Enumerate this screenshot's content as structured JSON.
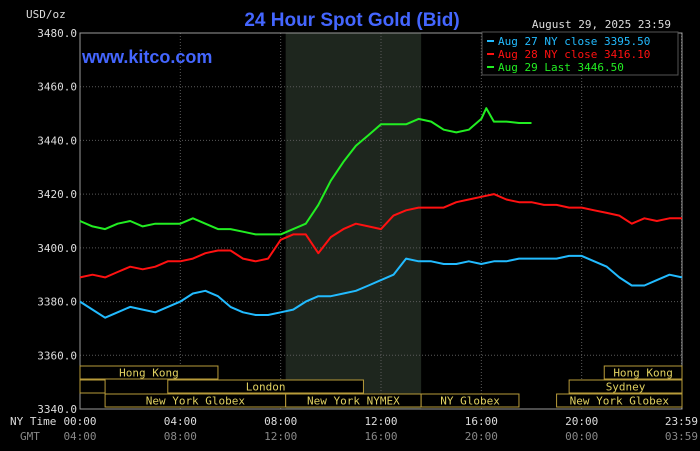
{
  "chart_data": {
    "type": "line",
    "title": "24 Hour Spot Gold (Bid)",
    "watermark": "www.kitco.com",
    "ylabel": "USD/oz",
    "date_label": "August 29, 2025 23:59",
    "ylim": [
      3340,
      3480
    ],
    "yticks": [
      3340,
      3360,
      3380,
      3400,
      3420,
      3440,
      3460,
      3480
    ],
    "ytick_labels": [
      "3340.0",
      "3360.0",
      "3380.0",
      "3400.0",
      "3420.0",
      "3440.0",
      "3460.0",
      "3480.0"
    ],
    "x_axis_label": "NY Time",
    "gmt_label": "GMT",
    "xticks": [
      0,
      4,
      8,
      12,
      16,
      20,
      23.98
    ],
    "xtick_labels": [
      "00:00",
      "04:00",
      "08:00",
      "12:00",
      "16:00",
      "20:00",
      "23:59"
    ],
    "gmt_labels": [
      "04:00",
      "08:00",
      "12:00",
      "16:00",
      "20:00",
      "00:00",
      "03:59"
    ],
    "grid": true,
    "highlight_range": [
      8.2,
      13.6
    ],
    "legend_position": "top-right",
    "series": [
      {
        "name": "Aug 27 NY close 3395.50",
        "color": "#22bbff",
        "x": [
          0,
          0.5,
          1,
          1.5,
          2,
          2.5,
          3,
          3.5,
          4,
          4.5,
          5,
          5.5,
          6,
          6.5,
          7,
          7.5,
          8,
          8.5,
          9,
          9.5,
          10,
          10.5,
          11,
          11.5,
          12,
          12.5,
          13,
          13.5,
          14,
          14.5,
          15,
          15.5,
          16,
          16.5,
          17,
          17.5,
          18,
          18.5,
          19,
          19.5,
          20,
          20.5,
          21,
          21.5,
          22,
          22.5,
          23,
          23.5,
          24
        ],
        "y": [
          3380,
          3377,
          3374,
          3376,
          3378,
          3377,
          3376,
          3378,
          3380,
          3383,
          3384,
          3382,
          3378,
          3376,
          3375,
          3375,
          3376,
          3377,
          3380,
          3382,
          3382,
          3383,
          3384,
          3386,
          3388,
          3390,
          3396,
          3395,
          3395,
          3394,
          3394,
          3395,
          3394,
          3395,
          3395,
          3396,
          3396,
          3396,
          3396,
          3397,
          3397,
          3395,
          3393,
          3389,
          3386,
          3386,
          3388,
          3390,
          3389
        ]
      },
      {
        "name": "Aug 28 NY close 3416.10",
        "color": "#ff1111",
        "x": [
          0,
          0.5,
          1,
          1.5,
          2,
          2.5,
          3,
          3.5,
          4,
          4.5,
          5,
          5.5,
          6,
          6.5,
          7,
          7.5,
          8,
          8.5,
          9,
          9.5,
          10,
          10.5,
          11,
          11.5,
          12,
          12.5,
          13,
          13.5,
          14,
          14.5,
          15,
          15.5,
          16,
          16.5,
          17,
          17.5,
          18,
          18.5,
          19,
          19.5,
          20,
          20.5,
          21,
          21.5,
          22,
          22.5,
          23,
          23.5,
          24
        ],
        "y": [
          3389,
          3390,
          3389,
          3391,
          3393,
          3392,
          3393,
          3395,
          3395,
          3396,
          3398,
          3399,
          3399,
          3396,
          3395,
          3396,
          3403,
          3405,
          3405,
          3398,
          3404,
          3407,
          3409,
          3408,
          3407,
          3412,
          3414,
          3415,
          3415,
          3415,
          3417,
          3418,
          3419,
          3420,
          3418,
          3417,
          3417,
          3416,
          3416,
          3415,
          3415,
          3414,
          3413,
          3412,
          3409,
          3411,
          3410,
          3411,
          3411
        ]
      },
      {
        "name": "Aug 29 Last 3446.50",
        "color": "#22ee22",
        "x": [
          0,
          0.5,
          1,
          1.5,
          2,
          2.5,
          3,
          3.5,
          4,
          4.5,
          5,
          5.5,
          6,
          6.5,
          7,
          7.5,
          8,
          8.5,
          9,
          9.5,
          10,
          10.5,
          11,
          11.5,
          12,
          12.5,
          13,
          13.5,
          14,
          14.5,
          15,
          15.5,
          16,
          16.2,
          16.5,
          17,
          17.5,
          18
        ],
        "y": [
          3410,
          3408,
          3407,
          3409,
          3410,
          3408,
          3409,
          3409,
          3409,
          3411,
          3409,
          3407,
          3407,
          3406,
          3405,
          3405,
          3405,
          3407,
          3409,
          3416,
          3425,
          3432,
          3438,
          3442,
          3446,
          3446,
          3446,
          3448,
          3447,
          3444,
          3443,
          3444,
          3448,
          3452,
          3447,
          3447,
          3446.5,
          3446.5
        ]
      }
    ],
    "sessions": [
      {
        "label": "Hong Kong",
        "start": 0,
        "end": 5.5,
        "row": 0
      },
      {
        "label": "",
        "start": 0,
        "end": 1,
        "row": 1
      },
      {
        "label": "London",
        "start": 3.5,
        "end": 11.3,
        "row": 1
      },
      {
        "label": "New York Globex",
        "start": 1,
        "end": 8.2,
        "row": 2
      },
      {
        "label": "New York NYMEX",
        "start": 8.2,
        "end": 13.6,
        "row": 2
      },
      {
        "label": "NY Globex",
        "start": 13.6,
        "end": 17.5,
        "row": 2
      },
      {
        "label": "Hong Kong",
        "start": 20.9,
        "end": 24,
        "row": 0
      },
      {
        "label": "Sydney",
        "start": 19.5,
        "end": 24,
        "row": 1
      },
      {
        "label": "New York Globex",
        "start": 19,
        "end": 24,
        "row": 2
      }
    ]
  }
}
